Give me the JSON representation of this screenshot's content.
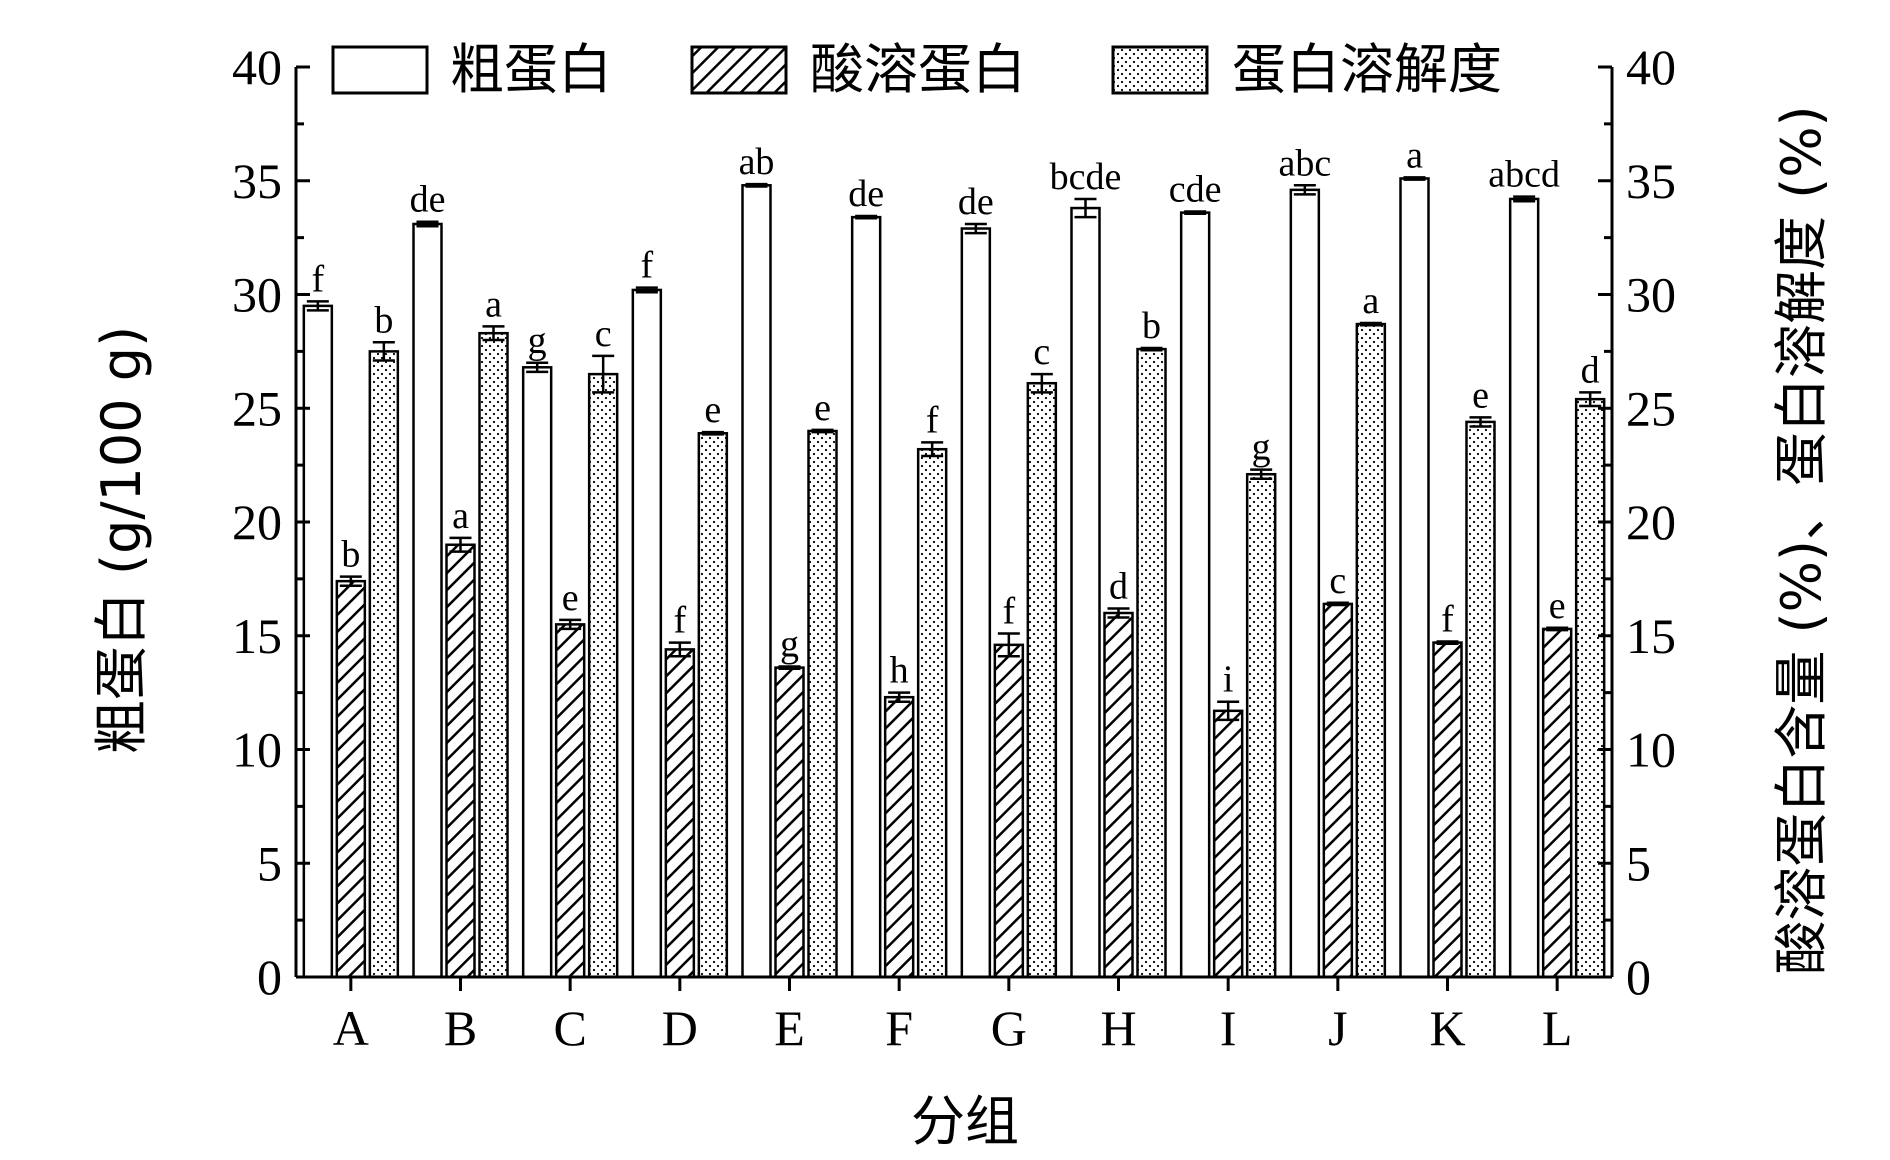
{
  "chart_data": {
    "type": "bar",
    "categories": [
      "A",
      "B",
      "C",
      "D",
      "E",
      "F",
      "G",
      "H",
      "I",
      "J",
      "K",
      "L"
    ],
    "xlabel": "分组",
    "ylabel_left": "粗蛋白 (g/100 g)",
    "ylabel_right": "酸溶蛋白含量 (%)、蛋白溶解度 (%)",
    "ylim": [
      0,
      40
    ],
    "yticks": [
      0,
      5,
      10,
      15,
      20,
      25,
      30,
      35,
      40
    ],
    "grid": false,
    "legend_position": "top",
    "series": [
      {
        "name": "粗蛋白",
        "pattern": "empty",
        "values": [
          29.5,
          33.1,
          26.8,
          30.2,
          34.8,
          33.4,
          32.9,
          33.8,
          33.6,
          34.6,
          35.1,
          34.2
        ],
        "errors": [
          0.2,
          0.1,
          0.2,
          0.1,
          0.05,
          0.05,
          0.2,
          0.4,
          0.05,
          0.2,
          0.05,
          0.1
        ],
        "labels": [
          "f",
          "de",
          "g",
          "f",
          "ab",
          "de",
          "de",
          "bcde",
          "cde",
          "abc",
          "a",
          "abcd"
        ]
      },
      {
        "name": "酸溶蛋白",
        "pattern": "hatch",
        "values": [
          17.4,
          19.0,
          15.5,
          14.4,
          13.6,
          12.3,
          14.6,
          16.0,
          11.7,
          16.4,
          14.7,
          15.3
        ],
        "errors": [
          0.2,
          0.3,
          0.2,
          0.3,
          0.05,
          0.2,
          0.5,
          0.2,
          0.4,
          0.05,
          0.05,
          0.05
        ],
        "labels": [
          "b",
          "a",
          "e",
          "f",
          "g",
          "h",
          "f",
          "d",
          "i",
          "c",
          "f",
          "e"
        ]
      },
      {
        "name": "蛋白溶解度",
        "pattern": "dots",
        "values": [
          27.5,
          28.3,
          26.5,
          23.9,
          24.0,
          23.2,
          26.1,
          27.6,
          22.1,
          28.7,
          24.4,
          25.4
        ],
        "errors": [
          0.4,
          0.3,
          0.8,
          0.05,
          0.05,
          0.3,
          0.4,
          0.05,
          0.2,
          0.05,
          0.2,
          0.3
        ],
        "labels": [
          "b",
          "a",
          "c",
          "e",
          "e",
          "f",
          "c",
          "b",
          "g",
          "a",
          "e",
          "d"
        ]
      }
    ]
  }
}
